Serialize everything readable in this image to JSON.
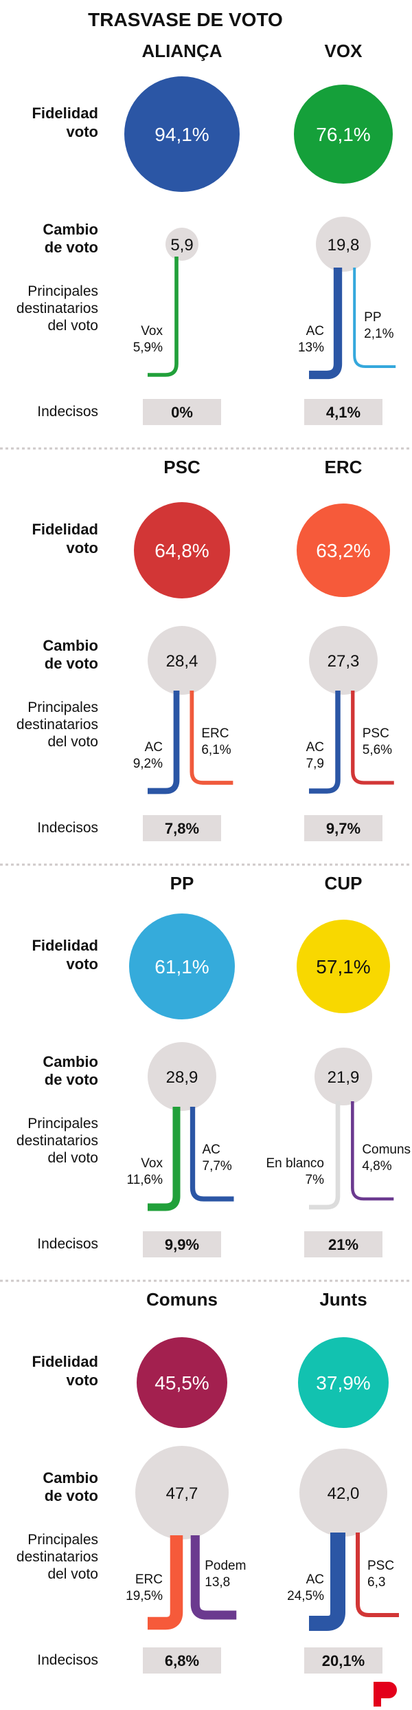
{
  "title": "TRASVASE DE VOTO",
  "row_labels": {
    "fidelidad": [
      "Fidelidad",
      "voto"
    ],
    "cambio": [
      "Cambio",
      "de voto"
    ],
    "destinatarios": [
      "Principales",
      "destinatarios",
      "del voto"
    ],
    "indecisos": "Indecisos"
  },
  "chart_data": {
    "type": "table",
    "title": "TRASVASE DE VOTO",
    "parties": [
      {
        "name": "ALIANÇA",
        "color": "#2b56a5",
        "fidelidad": "94,1%",
        "fidelidad_value": 94.1,
        "cambio": "5,9",
        "cambio_value": 5.9,
        "destinations": [
          {
            "label": "Vox",
            "value": "5,9%",
            "color": "#21a03a"
          }
        ],
        "indecisos": "0%"
      },
      {
        "name": "VOX",
        "color": "#15a03a",
        "fidelidad": "76,1%",
        "fidelidad_value": 76.1,
        "cambio": "19,8",
        "cambio_value": 19.8,
        "destinations": [
          {
            "label": "AC",
            "value": "13%",
            "color": "#2b56a5"
          },
          {
            "label": "PP",
            "value": "2,1%",
            "color": "#35a8dc"
          }
        ],
        "indecisos": "4,1%"
      },
      {
        "name": "PSC",
        "color": "#d23636",
        "fidelidad": "64,8%",
        "fidelidad_value": 64.8,
        "cambio": "28,4",
        "cambio_value": 28.4,
        "destinations": [
          {
            "label": "AC",
            "value": "9,2%",
            "color": "#2b56a5"
          },
          {
            "label": "ERC",
            "value": "6,1%",
            "color": "#f05a3c"
          }
        ],
        "indecisos": "7,8%"
      },
      {
        "name": "ERC",
        "color": "#f65a3a",
        "fidelidad": "63,2%",
        "fidelidad_value": 63.2,
        "cambio": "27,3",
        "cambio_value": 27.3,
        "destinations": [
          {
            "label": "AC",
            "value": "7,9",
            "color": "#2b56a5"
          },
          {
            "label": "PSC",
            "value": "5,6%",
            "color": "#d23636"
          }
        ],
        "indecisos": "9,7%"
      },
      {
        "name": "PP",
        "color": "#35abdb",
        "fidelidad": "61,1%",
        "fidelidad_value": 61.1,
        "cambio": "28,9",
        "cambio_value": 28.9,
        "destinations": [
          {
            "label": "Vox",
            "value": "11,6%",
            "color": "#21a03a"
          },
          {
            "label": "AC",
            "value": "7,7%",
            "color": "#2b56a5"
          }
        ],
        "indecisos": "9,9%"
      },
      {
        "name": "CUP",
        "color": "#f8d800",
        "fidelidad": "57,1%",
        "fidelidad_value": 57.1,
        "cambio": "21,9",
        "cambio_value": 21.9,
        "destinations": [
          {
            "label": "En blanco",
            "value": "7%",
            "color": "#dcdcdc"
          },
          {
            "label": "Comuns",
            "value": "4,8%",
            "color": "#6b3a8f"
          }
        ],
        "indecisos": "21%"
      },
      {
        "name": "Comuns",
        "color": "#a3204f",
        "fidelidad": "45,5%",
        "fidelidad_value": 45.5,
        "cambio": "47,7",
        "cambio_value": 47.7,
        "destinations": [
          {
            "label": "ERC",
            "value": "19,5%",
            "color": "#f65a3a"
          },
          {
            "label": "Podem",
            "value": "13,8",
            "color": "#6b3a8f"
          }
        ],
        "indecisos": "6,8%"
      },
      {
        "name": "Junts",
        "color": "#12c2b0",
        "fidelidad": "37,9%",
        "fidelidad_value": 37.9,
        "cambio": "42,0",
        "cambio_value": 42.0,
        "destinations": [
          {
            "label": "AC",
            "value": "24,5%",
            "color": "#2b56a5"
          },
          {
            "label": "PSC",
            "value": "6,3",
            "color": "#d23636"
          }
        ],
        "indecisos": "20,1%"
      }
    ]
  }
}
